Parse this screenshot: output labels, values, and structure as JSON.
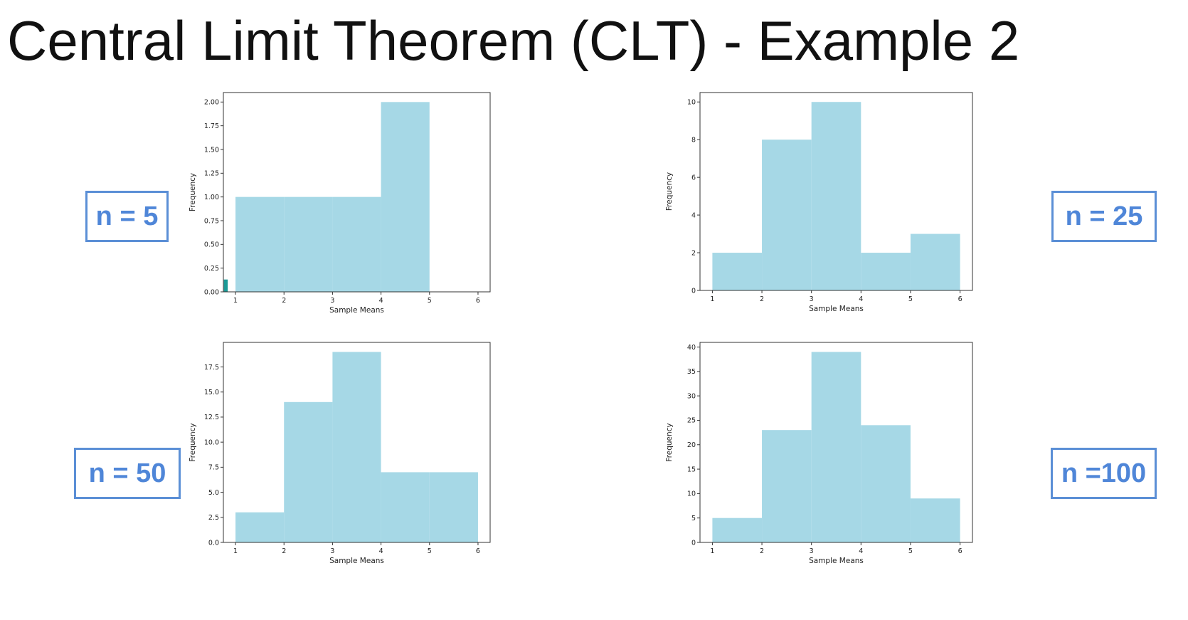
{
  "page": {
    "title": "Central Limit Theorem (CLT) - Example 2"
  },
  "colors": {
    "bar_fill": "#a6d8e6",
    "small_bar_fill": "#1b9a96",
    "label_border": "#5b8fd6",
    "label_text": "#4f86d8"
  },
  "labels": [
    "n = 5",
    "n = 25",
    "n = 50",
    "n =100"
  ],
  "chart_data": [
    {
      "type": "bar",
      "xlabel": "Sample Means",
      "ylabel": "Frequency",
      "xlim": [
        0.75,
        6.25
      ],
      "ylim": [
        0,
        2.1
      ],
      "xticks": [
        "1",
        "2",
        "3",
        "4",
        "5",
        "6"
      ],
      "yticks": [
        "0.00",
        "0.25",
        "0.50",
        "0.75",
        "1.00",
        "1.25",
        "1.50",
        "1.75",
        "2.00"
      ],
      "bins": [
        [
          1,
          2,
          1
        ],
        [
          2,
          3,
          1
        ],
        [
          3,
          4,
          1
        ],
        [
          4,
          5,
          2
        ]
      ],
      "extra_bins": [
        [
          0.76,
          0.84,
          0.13
        ]
      ]
    },
    {
      "type": "bar",
      "xlabel": "Sample Means",
      "ylabel": "Frequency",
      "xlim": [
        0.75,
        6.25
      ],
      "ylim": [
        0,
        10.5
      ],
      "xticks": [
        "1",
        "2",
        "3",
        "4",
        "5",
        "6"
      ],
      "yticks": [
        "0",
        "2",
        "4",
        "6",
        "8",
        "10"
      ],
      "bins": [
        [
          1,
          2,
          2
        ],
        [
          2,
          3,
          8
        ],
        [
          3,
          4,
          10
        ],
        [
          4,
          5,
          2
        ],
        [
          5,
          6,
          3
        ]
      ]
    },
    {
      "type": "bar",
      "xlabel": "Sample Means",
      "ylabel": "Frequency",
      "xlim": [
        0.75,
        6.25
      ],
      "ylim": [
        0,
        19.95
      ],
      "xticks": [
        "1",
        "2",
        "3",
        "4",
        "5",
        "6"
      ],
      "yticks": [
        "0.0",
        "2.5",
        "5.0",
        "7.5",
        "10.0",
        "12.5",
        "15.0",
        "17.5"
      ],
      "bins": [
        [
          1,
          2,
          3
        ],
        [
          2,
          3,
          14
        ],
        [
          3,
          4,
          19
        ],
        [
          4,
          5,
          7
        ],
        [
          5,
          6,
          7
        ]
      ]
    },
    {
      "type": "bar",
      "xlabel": "Sample Means",
      "ylabel": "Frequency",
      "xlim": [
        0.75,
        6.25
      ],
      "ylim": [
        0,
        40.95
      ],
      "xticks": [
        "1",
        "2",
        "3",
        "4",
        "5",
        "6"
      ],
      "yticks": [
        "0",
        "5",
        "10",
        "15",
        "20",
        "25",
        "30",
        "35",
        "40"
      ],
      "bins": [
        [
          1,
          2,
          5
        ],
        [
          2,
          3,
          23
        ],
        [
          3,
          4,
          39
        ],
        [
          4,
          5,
          24
        ],
        [
          5,
          6,
          9
        ]
      ]
    }
  ]
}
